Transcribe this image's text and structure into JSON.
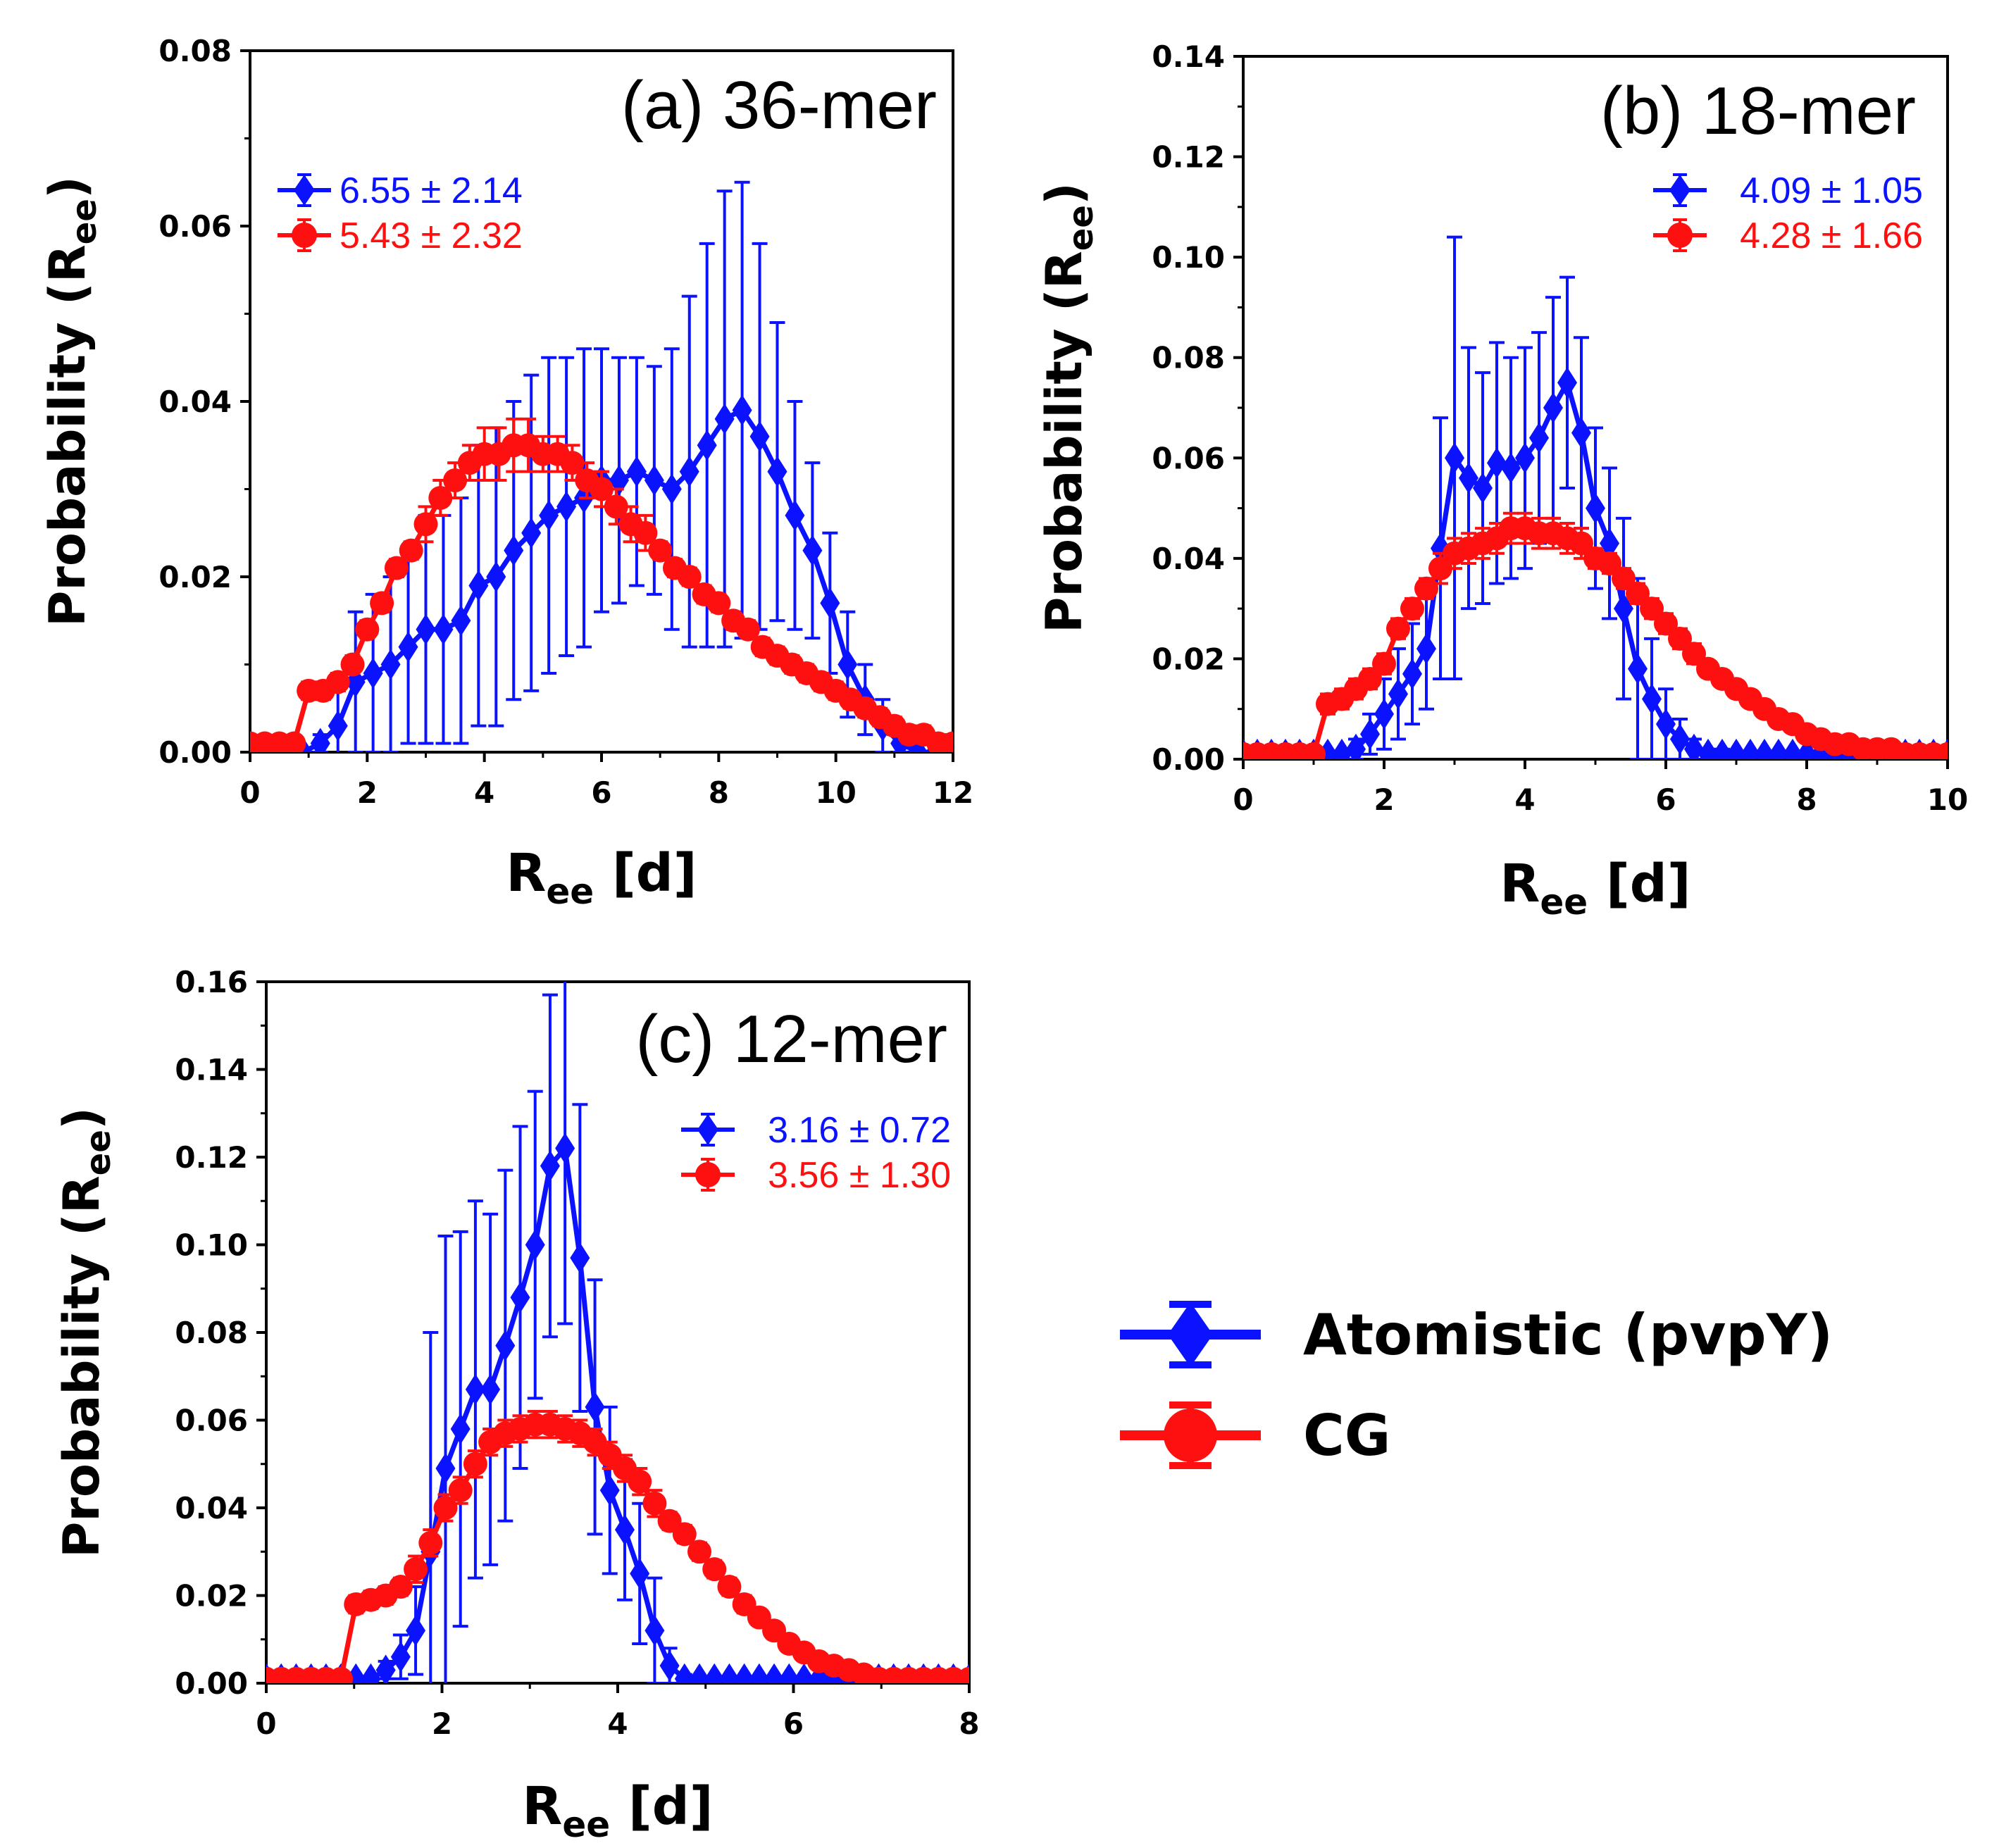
{
  "legend": {
    "entries": [
      {
        "label": "Atomistic (pvpY)",
        "color": "#0a12ff",
        "marker": "diamond"
      },
      {
        "label": "CG",
        "color": "#ff1010",
        "marker": "circle"
      }
    ]
  },
  "chart_data": [
    {
      "type": "line",
      "title": "(a) 36-mer",
      "xlabel": "R",
      "xlabel_sub": "ee",
      "xlabel_suffix": " [d]",
      "ylabel": "Probability (R",
      "ylabel_sub": "ee",
      "ylabel_suffix": ")",
      "xlim": [
        0,
        12
      ],
      "ylim": [
        0,
        0.08
      ],
      "xticks": [
        "0",
        "2",
        "4",
        "6",
        "8",
        "10",
        "12"
      ],
      "yticks": [
        "0.00",
        "0.02",
        "0.04",
        "0.06",
        "0.08"
      ],
      "series": [
        {
          "name": "Atomistic (pvpY)",
          "color": "#0a12ff",
          "marker": "diamond",
          "stat_label": "6.55 ± 2.14",
          "x": [
            0,
            0.3,
            0.6,
            0.9,
            1.2,
            1.5,
            1.8,
            2.1,
            2.4,
            2.7,
            3.0,
            3.3,
            3.6,
            3.9,
            4.2,
            4.5,
            4.8,
            5.1,
            5.4,
            5.7,
            6.0,
            6.3,
            6.6,
            6.9,
            7.2,
            7.5,
            7.8,
            8.1,
            8.4,
            8.7,
            9.0,
            9.3,
            9.6,
            9.9,
            10.2,
            10.5,
            10.8,
            11.1,
            11.4,
            11.7
          ],
          "y": [
            0,
            0,
            0,
            0,
            0.001,
            0.003,
            0.008,
            0.009,
            0.01,
            0.012,
            0.014,
            0.014,
            0.015,
            0.019,
            0.02,
            0.023,
            0.025,
            0.027,
            0.028,
            0.029,
            0.031,
            0.031,
            0.032,
            0.031,
            0.03,
            0.032,
            0.035,
            0.038,
            0.039,
            0.036,
            0.032,
            0.027,
            0.023,
            0.017,
            0.01,
            0.006,
            0.003,
            0.001,
            0,
            0
          ],
          "err": [
            0,
            0,
            0,
            0,
            0.001,
            0.004,
            0.008,
            0.009,
            0.01,
            0.011,
            0.013,
            0.013,
            0.014,
            0.016,
            0.017,
            0.017,
            0.018,
            0.018,
            0.017,
            0.017,
            0.015,
            0.014,
            0.013,
            0.013,
            0.016,
            0.02,
            0.023,
            0.026,
            0.026,
            0.022,
            0.017,
            0.013,
            0.01,
            0.008,
            0.006,
            0.004,
            0.003,
            0.001,
            0,
            0
          ]
        },
        {
          "name": "CG",
          "color": "#ff1010",
          "marker": "circle",
          "stat_label": "5.43 ± 2.32",
          "x": [
            0,
            0.25,
            0.5,
            0.75,
            1.0,
            1.25,
            1.5,
            1.75,
            2.0,
            2.25,
            2.5,
            2.75,
            3.0,
            3.25,
            3.5,
            3.75,
            4.0,
            4.25,
            4.5,
            4.75,
            5.0,
            5.25,
            5.5,
            5.75,
            6.0,
            6.25,
            6.5,
            6.75,
            7.0,
            7.25,
            7.5,
            7.75,
            8.0,
            8.25,
            8.5,
            8.75,
            9.0,
            9.25,
            9.5,
            9.75,
            10.0,
            10.25,
            10.5,
            10.75,
            11.0,
            11.25,
            11.5,
            11.75,
            12.0
          ],
          "y": [
            0.001,
            0.001,
            0.001,
            0.001,
            0.007,
            0.007,
            0.008,
            0.01,
            0.014,
            0.017,
            0.021,
            0.023,
            0.026,
            0.029,
            0.031,
            0.033,
            0.034,
            0.034,
            0.035,
            0.035,
            0.034,
            0.034,
            0.033,
            0.031,
            0.03,
            0.028,
            0.026,
            0.025,
            0.023,
            0.021,
            0.02,
            0.018,
            0.017,
            0.015,
            0.014,
            0.012,
            0.011,
            0.01,
            0.009,
            0.008,
            0.007,
            0.006,
            0.005,
            0.004,
            0.003,
            0.002,
            0.002,
            0.001,
            0.001
          ],
          "err": [
            0,
            0,
            0,
            0,
            0.001,
            0.001,
            0.001,
            0.001,
            0.001,
            0.001,
            0.001,
            0.001,
            0.002,
            0.002,
            0.002,
            0.002,
            0.003,
            0.003,
            0.003,
            0.003,
            0.002,
            0.002,
            0.002,
            0.002,
            0.002,
            0.002,
            0.002,
            0.002,
            0.001,
            0.001,
            0.001,
            0.001,
            0.001,
            0.001,
            0.001,
            0.001,
            0.001,
            0.001,
            0.001,
            0.001,
            0.001,
            0.001,
            0.001,
            0.001,
            0.001,
            0.001,
            0.001,
            0.001,
            0.001
          ]
        }
      ]
    },
    {
      "type": "line",
      "title": "(b) 18-mer",
      "xlabel": "R",
      "xlabel_sub": "ee",
      "xlabel_suffix": " [d]",
      "ylabel": "Probability (R",
      "ylabel_sub": "ee",
      "ylabel_suffix": ")",
      "xlim": [
        0,
        10
      ],
      "ylim": [
        0,
        0.14
      ],
      "xticks": [
        "0",
        "2",
        "4",
        "6",
        "8",
        "10"
      ],
      "yticks": [
        "0.00",
        "0.02",
        "0.04",
        "0.06",
        "0.08",
        "0.10",
        "0.12",
        "0.14"
      ],
      "series": [
        {
          "name": "Atomistic (pvpY)",
          "color": "#0a12ff",
          "marker": "diamond",
          "stat_label": "4.09 ± 1.05",
          "x": [
            0,
            0.2,
            0.4,
            0.6,
            0.8,
            1.0,
            1.2,
            1.4,
            1.6,
            1.8,
            2.0,
            2.2,
            2.4,
            2.6,
            2.8,
            3.0,
            3.2,
            3.4,
            3.6,
            3.8,
            4.0,
            4.2,
            4.4,
            4.6,
            4.8,
            5.0,
            5.2,
            5.4,
            5.6,
            5.8,
            6.0,
            6.2,
            6.4,
            6.6,
            6.8,
            7.0,
            7.2,
            7.4,
            7.6,
            7.8,
            8.0,
            8.2,
            8.4,
            8.6,
            8.8,
            9.0,
            9.2,
            9.4,
            9.6,
            9.8,
            10.0
          ],
          "y": [
            0.001,
            0.001,
            0.001,
            0.001,
            0.001,
            0.001,
            0.001,
            0.001,
            0.002,
            0.005,
            0.009,
            0.013,
            0.017,
            0.022,
            0.042,
            0.06,
            0.056,
            0.054,
            0.059,
            0.058,
            0.06,
            0.064,
            0.07,
            0.075,
            0.065,
            0.05,
            0.043,
            0.03,
            0.018,
            0.012,
            0.007,
            0.004,
            0.002,
            0.001,
            0.001,
            0.001,
            0.001,
            0.001,
            0.001,
            0.001,
            0.001,
            0.001,
            0.001,
            0.001,
            0.001,
            0.001,
            0.001,
            0.001,
            0.001,
            0.001,
            0.001
          ],
          "err": [
            0,
            0,
            0,
            0,
            0,
            0,
            0,
            0,
            0.002,
            0.004,
            0.007,
            0.009,
            0.01,
            0.012,
            0.026,
            0.044,
            0.026,
            0.023,
            0.024,
            0.022,
            0.022,
            0.021,
            0.022,
            0.021,
            0.019,
            0.016,
            0.015,
            0.018,
            0.018,
            0.012,
            0.007,
            0.004,
            0.002,
            0.001,
            0.001,
            0,
            0,
            0,
            0,
            0,
            0,
            0,
            0,
            0,
            0,
            0,
            0,
            0,
            0,
            0,
            0
          ]
        },
        {
          "name": "CG",
          "color": "#ff1010",
          "marker": "circle",
          "stat_label": "4.28 ± 1.66",
          "x": [
            0,
            0.2,
            0.4,
            0.6,
            0.8,
            1.0,
            1.2,
            1.4,
            1.6,
            1.8,
            2.0,
            2.2,
            2.4,
            2.6,
            2.8,
            3.0,
            3.2,
            3.4,
            3.6,
            3.8,
            4.0,
            4.2,
            4.4,
            4.6,
            4.8,
            5.0,
            5.2,
            5.4,
            5.6,
            5.8,
            6.0,
            6.2,
            6.4,
            6.6,
            6.8,
            7.0,
            7.2,
            7.4,
            7.6,
            7.8,
            8.0,
            8.2,
            8.4,
            8.6,
            8.8,
            9.0,
            9.2,
            9.4,
            9.6,
            9.8,
            10.0
          ],
          "y": [
            0.001,
            0.001,
            0.001,
            0.001,
            0.001,
            0.001,
            0.011,
            0.012,
            0.014,
            0.016,
            0.019,
            0.026,
            0.03,
            0.034,
            0.038,
            0.041,
            0.042,
            0.043,
            0.044,
            0.046,
            0.046,
            0.045,
            0.045,
            0.044,
            0.043,
            0.04,
            0.039,
            0.036,
            0.033,
            0.03,
            0.027,
            0.024,
            0.021,
            0.018,
            0.016,
            0.014,
            0.012,
            0.01,
            0.008,
            0.007,
            0.005,
            0.004,
            0.003,
            0.003,
            0.002,
            0.002,
            0.002,
            0.001,
            0.001,
            0.001,
            0.001
          ],
          "err": [
            0,
            0,
            0,
            0,
            0,
            0,
            0.002,
            0.002,
            0.002,
            0.002,
            0.002,
            0.002,
            0.002,
            0.002,
            0.003,
            0.003,
            0.003,
            0.003,
            0.003,
            0.003,
            0.003,
            0.003,
            0.003,
            0.003,
            0.003,
            0.002,
            0.002,
            0.002,
            0.002,
            0.002,
            0.002,
            0.002,
            0.002,
            0.001,
            0.001,
            0.001,
            0.001,
            0.001,
            0.001,
            0.001,
            0.001,
            0.001,
            0.001,
            0.001,
            0.001,
            0.001,
            0.001,
            0,
            0,
            0,
            0
          ]
        }
      ]
    },
    {
      "type": "line",
      "title": "(c) 12-mer",
      "xlabel": "R",
      "xlabel_sub": "ee",
      "xlabel_suffix": " [d]",
      "ylabel": "Probability (R",
      "ylabel_sub": "ee",
      "ylabel_suffix": ")",
      "xlim": [
        0,
        8
      ],
      "ylim": [
        0,
        0.16
      ],
      "xticks": [
        "0",
        "2",
        "4",
        "6",
        "8"
      ],
      "yticks": [
        "0.00",
        "0.02",
        "0.04",
        "0.06",
        "0.08",
        "0.10",
        "0.12",
        "0.14",
        "0.16"
      ],
      "series": [
        {
          "name": "Atomistic (pvpY)",
          "color": "#0a12ff",
          "marker": "diamond",
          "stat_label": "3.16 ± 0.72",
          "x": [
            0,
            0.17,
            0.34,
            0.51,
            0.68,
            0.85,
            1.02,
            1.19,
            1.36,
            1.53,
            1.7,
            1.87,
            2.04,
            2.21,
            2.38,
            2.55,
            2.72,
            2.89,
            3.06,
            3.23,
            3.4,
            3.57,
            3.74,
            3.91,
            4.08,
            4.25,
            4.42,
            4.59,
            4.76,
            4.93,
            5.1,
            5.27,
            5.44,
            5.61,
            5.78,
            5.95,
            6.12,
            6.29,
            6.46,
            6.63,
            6.8,
            6.97,
            7.14,
            7.31,
            7.48,
            7.65,
            7.82,
            8.0
          ],
          "y": [
            0.001,
            0.001,
            0.001,
            0.001,
            0.001,
            0.001,
            0.001,
            0.001,
            0.003,
            0.006,
            0.012,
            0.03,
            0.049,
            0.058,
            0.067,
            0.067,
            0.077,
            0.088,
            0.1,
            0.118,
            0.122,
            0.097,
            0.063,
            0.044,
            0.035,
            0.025,
            0.012,
            0.004,
            0.001,
            0.001,
            0.001,
            0.001,
            0.001,
            0.001,
            0.001,
            0.001,
            0.001,
            0.001,
            0.001,
            0.001,
            0.001,
            0.001,
            0.001,
            0.001,
            0.001,
            0.001,
            0.001,
            0.001
          ],
          "err": [
            0,
            0,
            0,
            0,
            0,
            0,
            0,
            0,
            0.002,
            0.005,
            0.01,
            0.05,
            0.053,
            0.045,
            0.043,
            0.04,
            0.04,
            0.039,
            0.035,
            0.039,
            0.04,
            0.035,
            0.029,
            0.019,
            0.016,
            0.016,
            0.012,
            0.004,
            0.001,
            0,
            0,
            0,
            0,
            0,
            0,
            0,
            0,
            0,
            0,
            0,
            0,
            0,
            0,
            0,
            0,
            0,
            0,
            0
          ]
        },
        {
          "name": "CG",
          "color": "#ff1010",
          "marker": "circle",
          "stat_label": "3.56 ± 1.30",
          "x": [
            0,
            0.17,
            0.34,
            0.51,
            0.68,
            0.85,
            1.02,
            1.19,
            1.36,
            1.53,
            1.7,
            1.87,
            2.04,
            2.21,
            2.38,
            2.55,
            2.72,
            2.89,
            3.06,
            3.23,
            3.4,
            3.57,
            3.74,
            3.91,
            4.08,
            4.25,
            4.42,
            4.59,
            4.76,
            4.93,
            5.1,
            5.27,
            5.44,
            5.61,
            5.78,
            5.95,
            6.12,
            6.29,
            6.46,
            6.63,
            6.8,
            6.97,
            7.14,
            7.31,
            7.48,
            7.65,
            7.82,
            8.0
          ],
          "y": [
            0.001,
            0.001,
            0.001,
            0.001,
            0.001,
            0.001,
            0.018,
            0.019,
            0.02,
            0.022,
            0.026,
            0.032,
            0.04,
            0.044,
            0.05,
            0.055,
            0.057,
            0.058,
            0.059,
            0.059,
            0.058,
            0.057,
            0.055,
            0.052,
            0.049,
            0.046,
            0.041,
            0.037,
            0.034,
            0.03,
            0.026,
            0.022,
            0.018,
            0.015,
            0.012,
            0.009,
            0.007,
            0.005,
            0.004,
            0.003,
            0.002,
            0.001,
            0.001,
            0.001,
            0.001,
            0.001,
            0.001,
            0.001
          ],
          "err": [
            0,
            0,
            0,
            0,
            0,
            0,
            0.002,
            0.002,
            0.002,
            0.002,
            0.003,
            0.003,
            0.003,
            0.003,
            0.003,
            0.003,
            0.003,
            0.003,
            0.003,
            0.003,
            0.003,
            0.003,
            0.003,
            0.003,
            0.003,
            0.003,
            0.003,
            0.002,
            0.002,
            0.002,
            0.002,
            0.002,
            0.002,
            0.001,
            0.001,
            0.001,
            0.001,
            0.001,
            0.001,
            0.001,
            0.001,
            0,
            0,
            0,
            0,
            0,
            0,
            0
          ]
        }
      ]
    }
  ]
}
